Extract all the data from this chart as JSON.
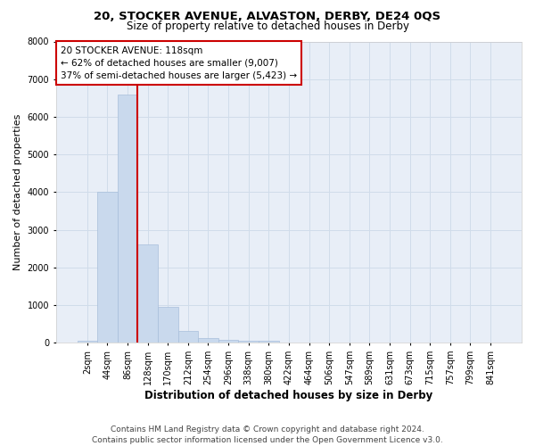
{
  "title": "20, STOCKER AVENUE, ALVASTON, DERBY, DE24 0QS",
  "subtitle": "Size of property relative to detached houses in Derby",
  "xlabel": "Distribution of detached houses by size in Derby",
  "ylabel": "Number of detached properties",
  "footer_line1": "Contains HM Land Registry data © Crown copyright and database right 2024.",
  "footer_line2": "Contains public sector information licensed under the Open Government Licence v3.0.",
  "annotation_title": "20 STOCKER AVENUE: 118sqm",
  "annotation_line2": "← 62% of detached houses are smaller (9,007)",
  "annotation_line3": "37% of semi-detached houses are larger (5,423) →",
  "bar_categories": [
    "2sqm",
    "44sqm",
    "86sqm",
    "128sqm",
    "170sqm",
    "212sqm",
    "254sqm",
    "296sqm",
    "338sqm",
    "380sqm",
    "422sqm",
    "464sqm",
    "506sqm",
    "547sqm",
    "589sqm",
    "631sqm",
    "673sqm",
    "715sqm",
    "757sqm",
    "799sqm",
    "841sqm"
  ],
  "bar_values": [
    60,
    4000,
    6600,
    2620,
    950,
    320,
    130,
    85,
    65,
    60,
    0,
    0,
    0,
    0,
    0,
    0,
    0,
    0,
    0,
    0,
    0
  ],
  "bar_color": "#c9d9ed",
  "bar_edge_color": "#a8bedb",
  "vline_color": "#cc0000",
  "vline_x_index": 2.5,
  "ylim": [
    0,
    8000
  ],
  "yticks": [
    0,
    1000,
    2000,
    3000,
    4000,
    5000,
    6000,
    7000,
    8000
  ],
  "grid_color": "#d0dcea",
  "background_color": "#e8eef7",
  "annotation_box_color": "#ffffff",
  "annotation_box_edge": "#cc0000",
  "title_fontsize": 9.5,
  "subtitle_fontsize": 8.5,
  "xlabel_fontsize": 8.5,
  "ylabel_fontsize": 8,
  "tick_fontsize": 7,
  "annotation_fontsize": 7.5,
  "footer_fontsize": 6.5
}
